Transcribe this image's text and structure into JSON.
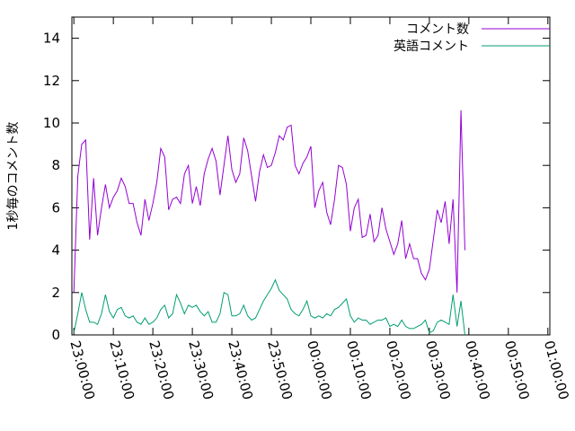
{
  "chart_data": {
    "type": "line",
    "title": "",
    "xlabel": "",
    "ylabel": "1秒毎のコメント数",
    "x_ticks": [
      "23:00:00",
      "23:10:00",
      "23:20:00",
      "23:30:00",
      "23:40:00",
      "23:50:00",
      "00:00:00",
      "00:10:00",
      "00:20:00",
      "00:30:00",
      "00:40:00",
      "00:50:00",
      "01:00:00"
    ],
    "y_ticks": [
      "0",
      "2",
      "4",
      "6",
      "8",
      "10",
      "12",
      "14"
    ],
    "xlim_minutes": [
      -0.5,
      120.5
    ],
    "ylim": [
      0,
      15
    ],
    "grid": false,
    "legend_position": "top-right",
    "x_minutes": [
      0,
      1,
      2,
      3,
      4,
      5,
      6,
      7,
      8,
      9,
      10,
      11,
      12,
      13,
      14,
      15,
      16,
      17,
      18,
      19,
      20,
      21,
      22,
      23,
      24,
      25,
      26,
      27,
      28,
      29,
      30,
      31,
      32,
      33,
      34,
      35,
      36,
      37,
      38,
      39,
      40,
      41,
      42,
      43,
      44,
      45,
      46,
      47,
      48,
      49,
      50,
      51,
      52,
      53,
      54,
      55,
      56,
      57,
      58,
      59,
      60,
      61,
      62,
      63,
      64,
      65,
      66,
      67,
      68,
      69,
      70,
      71,
      72,
      73,
      74,
      75,
      76,
      77,
      78,
      79,
      80,
      81,
      82,
      83,
      84,
      85,
      86,
      87,
      88,
      89,
      90,
      91,
      92,
      93,
      94,
      95,
      96,
      97,
      98,
      99,
      100,
      101,
      102,
      103,
      104,
      105,
      106,
      107,
      108,
      109,
      110,
      111,
      112
    ],
    "series": [
      {
        "name": "コメント数",
        "color": "#9400d3",
        "values": [
          2.0,
          7.5,
          9.0,
          9.2,
          4.5,
          7.4,
          4.7,
          6.0,
          7.1,
          6.0,
          6.5,
          6.8,
          7.4,
          7.0,
          6.2,
          6.2,
          5.3,
          4.7,
          6.4,
          5.4,
          6.2,
          7.2,
          8.8,
          8.4,
          5.9,
          6.4,
          6.5,
          6.2,
          7.6,
          8.0,
          6.2,
          7.0,
          6.1,
          7.6,
          8.3,
          8.8,
          8.2,
          6.6,
          8.0,
          9.4,
          7.8,
          7.2,
          7.6,
          9.3,
          8.7,
          7.5,
          6.3,
          7.7,
          8.5,
          7.9,
          8.0,
          8.6,
          9.4,
          9.2,
          9.8,
          9.9,
          8.0,
          7.6,
          8.1,
          8.4,
          8.9,
          6.0,
          6.8,
          7.2,
          5.8,
          5.2,
          6.4,
          8.0,
          7.9,
          7.1,
          4.9,
          6.0,
          6.4,
          4.6,
          4.7,
          5.7,
          4.4,
          4.7,
          6.0,
          5.0,
          4.4,
          3.8,
          4.3,
          5.4,
          3.6,
          4.3,
          3.6,
          3.6,
          2.9,
          2.6,
          3.1,
          4.5,
          5.9,
          5.3,
          6.3,
          4.3,
          6.4,
          2.0,
          10.6,
          4.0
        ],
        "values_x_from": 0
      },
      {
        "name": "英語コメント",
        "color": "#009e73",
        "values": [
          0.1,
          1.0,
          2.0,
          1.2,
          0.6,
          0.6,
          0.5,
          1.0,
          1.9,
          1.1,
          0.8,
          1.2,
          1.3,
          0.9,
          0.8,
          0.9,
          0.6,
          0.5,
          0.8,
          0.5,
          0.6,
          0.8,
          1.2,
          1.4,
          0.8,
          1.0,
          1.9,
          1.5,
          1.0,
          1.4,
          1.3,
          1.4,
          1.1,
          0.9,
          1.1,
          0.6,
          0.6,
          1.0,
          2.0,
          1.9,
          0.9,
          0.9,
          1.0,
          1.4,
          0.9,
          0.7,
          0.8,
          1.2,
          1.6,
          1.9,
          2.2,
          2.6,
          2.1,
          1.9,
          1.7,
          1.2,
          1.0,
          0.9,
          1.2,
          1.6,
          0.9,
          0.8,
          0.9,
          0.8,
          1.0,
          0.9,
          1.2,
          1.3,
          1.5,
          1.7,
          0.9,
          0.6,
          0.8,
          0.7,
          0.7,
          0.5,
          0.6,
          0.7,
          0.7,
          0.8,
          0.4,
          0.5,
          0.4,
          0.7,
          0.4,
          0.3,
          0.3,
          0.4,
          0.5,
          0.7,
          0.1,
          0.2,
          0.6,
          0.7,
          0.6,
          0.5,
          1.9,
          0.4,
          1.6,
          0.0
        ],
        "values_x_from": 0
      }
    ]
  }
}
